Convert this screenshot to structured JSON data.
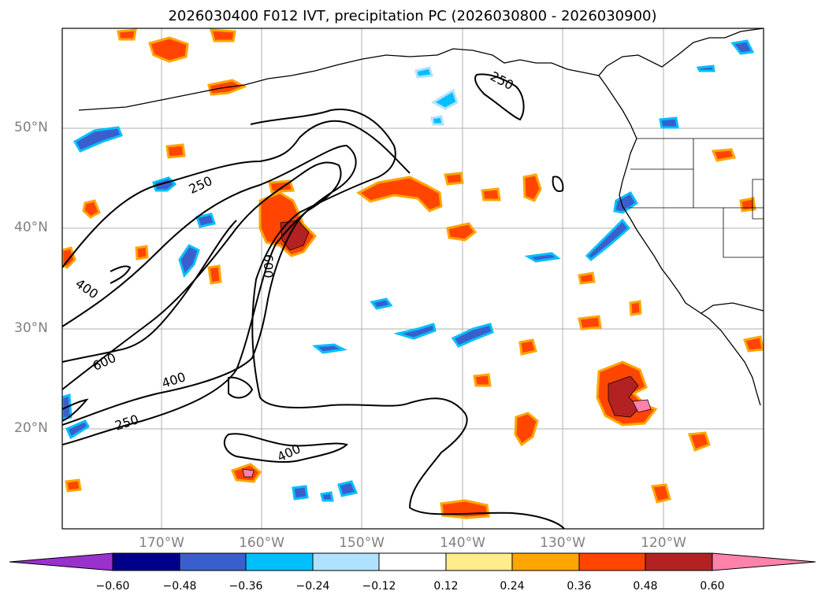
{
  "title": "2026030400 F012 IVT, precipitation PC (2026030800 - 2026030900)",
  "map": {
    "lat_labels": [
      "50°N",
      "40°N",
      "30°N",
      "20°N"
    ],
    "lon_labels": [
      "170°W",
      "160°W",
      "150°W",
      "140°W",
      "130°W",
      "120°W"
    ],
    "contour_labels": [
      "250",
      "250",
      "400",
      "600",
      "400",
      "250",
      "400",
      "600"
    ]
  },
  "colorbar": {
    "ticks": [
      "−0.60",
      "−0.48",
      "−0.36",
      "−0.24",
      "−0.12",
      "0.12",
      "0.24",
      "0.36",
      "0.48",
      "0.60"
    ],
    "colors": [
      "#9932cc",
      "#00008b",
      "#3a5fcd",
      "#00bfff",
      "#b0e2ff",
      "#ffffff",
      "#ffec8b",
      "#ffa500",
      "#ff4500",
      "#b22222",
      "#ff82ab"
    ]
  }
}
